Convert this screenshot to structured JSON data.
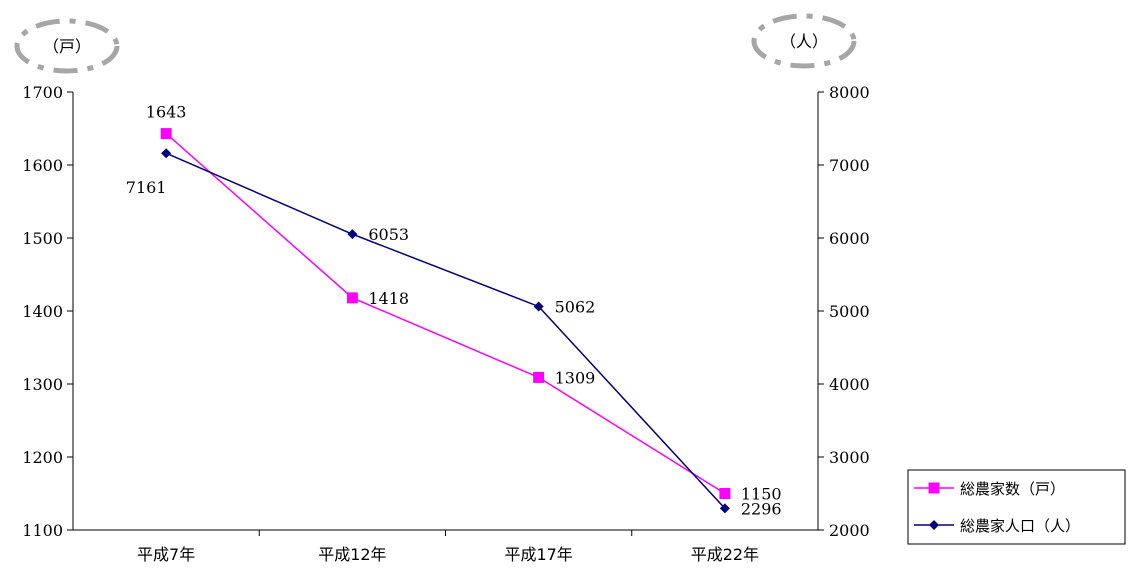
{
  "chart_data": {
    "type": "line",
    "categories": [
      "平成7年",
      "平成12年",
      "平成17年",
      "平成22年"
    ],
    "left_axis": {
      "unit": "（戸）",
      "min": 1100,
      "max": 1700,
      "step": 100,
      "ticks": [
        "1100",
        "1200",
        "1300",
        "1400",
        "1500",
        "1600",
        "1700"
      ]
    },
    "right_axis": {
      "unit": "（人）",
      "min": 2000,
      "max": 8000,
      "step": 1000,
      "ticks": [
        "2000",
        "3000",
        "4000",
        "5000",
        "6000",
        "7000",
        "8000"
      ]
    },
    "series": [
      {
        "name": "総農家数（戸）",
        "axis": "left",
        "color": "#ff00ff",
        "marker": "square",
        "values": [
          1643,
          1418,
          1309,
          1150
        ],
        "labels": [
          "1643",
          "1418",
          "1309",
          "1150"
        ]
      },
      {
        "name": "総農家人口（人）",
        "axis": "right",
        "color": "#000080",
        "marker": "diamond",
        "values": [
          7161,
          6053,
          5062,
          2296
        ],
        "labels": [
          "7161",
          "6053",
          "5062",
          "2296"
        ]
      }
    ],
    "legend_position": "bottom-right",
    "grid": false,
    "title": "",
    "xlabel": ""
  }
}
